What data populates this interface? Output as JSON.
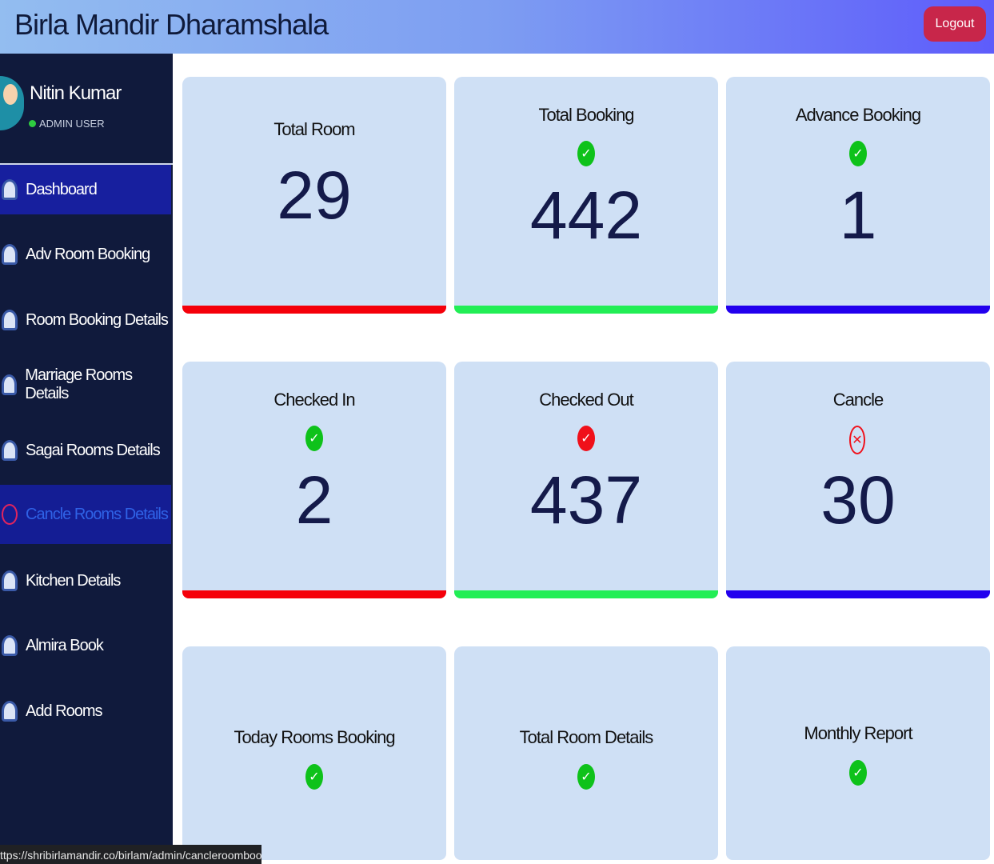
{
  "header": {
    "title": "Birla Mandir Dharamshala",
    "logout": "Logout"
  },
  "sidebar": {
    "user": {
      "name": "Nitin Kumar",
      "role": "ADMIN USER"
    },
    "menu": [
      "Dashboard",
      "Adv Room Booking",
      "Room Booking Details",
      "Marriage Rooms Details",
      "Sagai Rooms Details",
      "Cancle Rooms Details",
      "Kitchen Details",
      "Almira Book",
      "Add Rooms"
    ]
  },
  "cards": [
    {
      "title": "Total Room",
      "value": "29"
    },
    {
      "title": "Total Booking",
      "value": "442"
    },
    {
      "title": "Advance Booking",
      "value": "1"
    },
    {
      "title": "Checked In",
      "value": "2"
    },
    {
      "title": "Checked Out",
      "value": "437"
    },
    {
      "title": "Cancle",
      "value": "30"
    },
    {
      "title": "Today Rooms Booking"
    },
    {
      "title": "Total Room Details"
    },
    {
      "title": "Monthly Report"
    }
  ],
  "status_bar": "ttps://shribirlamandir.co/birlam/admin/cancleroombook.php"
}
